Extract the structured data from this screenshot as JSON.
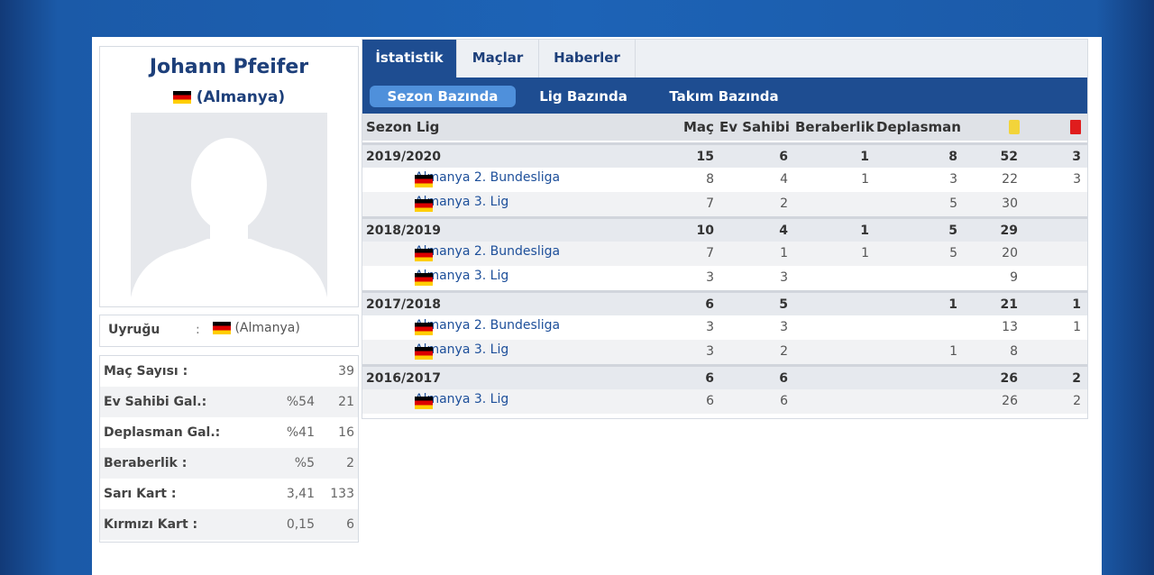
{
  "profile": {
    "name": "Johann Pfeifer",
    "country": "(Almanya)",
    "nationality_label": "Uyruğu",
    "nationality_colon": ":",
    "nationality_value": "(Almanya)"
  },
  "summary": [
    {
      "label": "Maç Sayısı :",
      "pct": "",
      "value": "39"
    },
    {
      "label": "Ev Sahibi Gal.:",
      "pct": "%54",
      "value": "21"
    },
    {
      "label": "Deplasman Gal.:",
      "pct": "%41",
      "value": "16"
    },
    {
      "label": "Beraberlik :",
      "pct": "%5",
      "value": "2"
    },
    {
      "label": "Sarı Kart :",
      "pct": "3,41",
      "value": "133"
    },
    {
      "label": "Kırmızı Kart :",
      "pct": "0,15",
      "value": "6"
    }
  ],
  "tabs": {
    "stats": "İstatistik",
    "matches": "Maçlar",
    "news": "Haberler"
  },
  "subtabs": {
    "season": "Sezon Bazında",
    "league": "Lig Bazında",
    "team": "Takım Bazında"
  },
  "table": {
    "headers": {
      "season_league": "Sezon Lig",
      "mac": "Maç",
      "ev": "Ev Sahibi",
      "ber": "Beraberlik",
      "dep": "Deplasman"
    },
    "rows": [
      {
        "type": "season",
        "name": "2019/2020",
        "mac": "15",
        "ev": "6",
        "ber": "1",
        "dep": "8",
        "yel": "52",
        "red": "3"
      },
      {
        "type": "league",
        "name": "Almanya 2. Bundesliga",
        "mac": "8",
        "ev": "4",
        "ber": "1",
        "dep": "3",
        "yel": "22",
        "red": "3"
      },
      {
        "type": "league",
        "name": "Almanya 3. Lig",
        "mac": "7",
        "ev": "2",
        "ber": "",
        "dep": "5",
        "yel": "30",
        "red": ""
      },
      {
        "type": "season",
        "name": "2018/2019",
        "mac": "10",
        "ev": "4",
        "ber": "1",
        "dep": "5",
        "yel": "29",
        "red": ""
      },
      {
        "type": "league",
        "name": "Almanya 2. Bundesliga",
        "mac": "7",
        "ev": "1",
        "ber": "1",
        "dep": "5",
        "yel": "20",
        "red": ""
      },
      {
        "type": "league",
        "name": "Almanya 3. Lig",
        "mac": "3",
        "ev": "3",
        "ber": "",
        "dep": "",
        "yel": "9",
        "red": ""
      },
      {
        "type": "season",
        "name": "2017/2018",
        "mac": "6",
        "ev": "5",
        "ber": "",
        "dep": "1",
        "yel": "21",
        "red": "1"
      },
      {
        "type": "league",
        "name": "Almanya 2. Bundesliga",
        "mac": "3",
        "ev": "3",
        "ber": "",
        "dep": "",
        "yel": "13",
        "red": "1"
      },
      {
        "type": "league",
        "name": "Almanya 3. Lig",
        "mac": "3",
        "ev": "2",
        "ber": "",
        "dep": "1",
        "yel": "8",
        "red": ""
      },
      {
        "type": "season",
        "name": "2016/2017",
        "mac": "6",
        "ev": "6",
        "ber": "",
        "dep": "",
        "yel": "26",
        "red": "2"
      },
      {
        "type": "league",
        "name": "Almanya 3. Lig",
        "mac": "6",
        "ev": "6",
        "ber": "",
        "dep": "",
        "yel": "26",
        "red": "2"
      }
    ]
  },
  "colors": {
    "brand_blue": "#1e4d91",
    "accent_blue": "#4f90db",
    "yellow_card": "#f2d43a",
    "red_card": "#e01d1d"
  },
  "icons": [
    "flag-germany-icon",
    "yellow-card-icon",
    "red-card-icon",
    "avatar-placeholder-icon"
  ]
}
